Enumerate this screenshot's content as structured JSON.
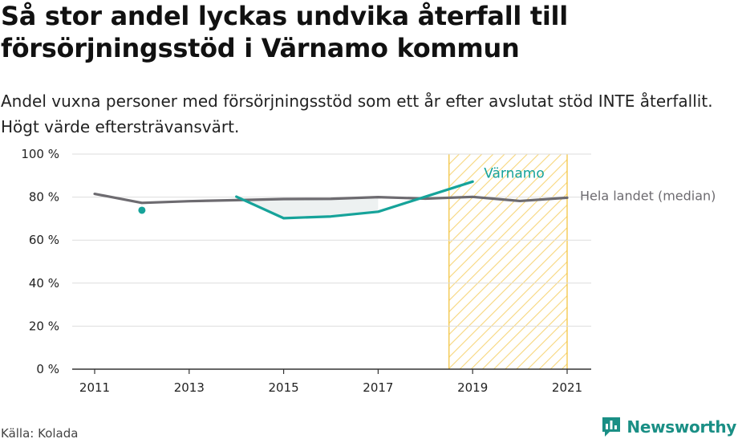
{
  "title": "Så stor andel lyckas undvika återfall till försörjningsstöd i Värnamo kommun",
  "subtitle": "Andel vuxna personer med försörjningsstöd som ett år efter avslutat stöd INTE återfallit. Högt värde eftersträvansvärt.",
  "source": "Källa: Kolada",
  "brand": {
    "name": "Newsworthy",
    "icon": "newsworthy-logo-icon"
  },
  "colors": {
    "primary": "#16a39a",
    "secondary": "#6d6b70",
    "highlight": "#f3c544",
    "grid": "#dddddd",
    "axis": "#333333"
  },
  "chart_data": {
    "type": "line",
    "x_ticks": [
      2011,
      2013,
      2015,
      2017,
      2019,
      2021
    ],
    "y_ticks": [
      0,
      20,
      40,
      60,
      80,
      100
    ],
    "y_tick_labels": [
      "0 %",
      "20 %",
      "40 %",
      "60 %",
      "80 %",
      "100 %"
    ],
    "xlim": [
      2011,
      2021
    ],
    "ylim": [
      0,
      100
    ],
    "grid": "horizontal",
    "highlight_range": [
      2018.5,
      2021
    ],
    "highlight_pattern": "hatched",
    "series": [
      {
        "name": "Hela landet (median)",
        "color": "#6d6b70",
        "x": [
          2011,
          2012,
          2013,
          2014,
          2015,
          2016,
          2017,
          2018,
          2019,
          2020,
          2021
        ],
        "y": [
          81.5,
          77.3,
          78.1,
          78.6,
          79.1,
          79.2,
          80.0,
          79.3,
          80.1,
          78.2,
          79.7
        ]
      },
      {
        "name": "Värnamo",
        "color": "#16a39a",
        "x": [
          2012,
          2014,
          2015,
          2016,
          2017,
          2019
        ],
        "y": [
          73.9,
          80.2,
          70.2,
          71.0,
          73.2,
          87.2
        ]
      }
    ]
  }
}
